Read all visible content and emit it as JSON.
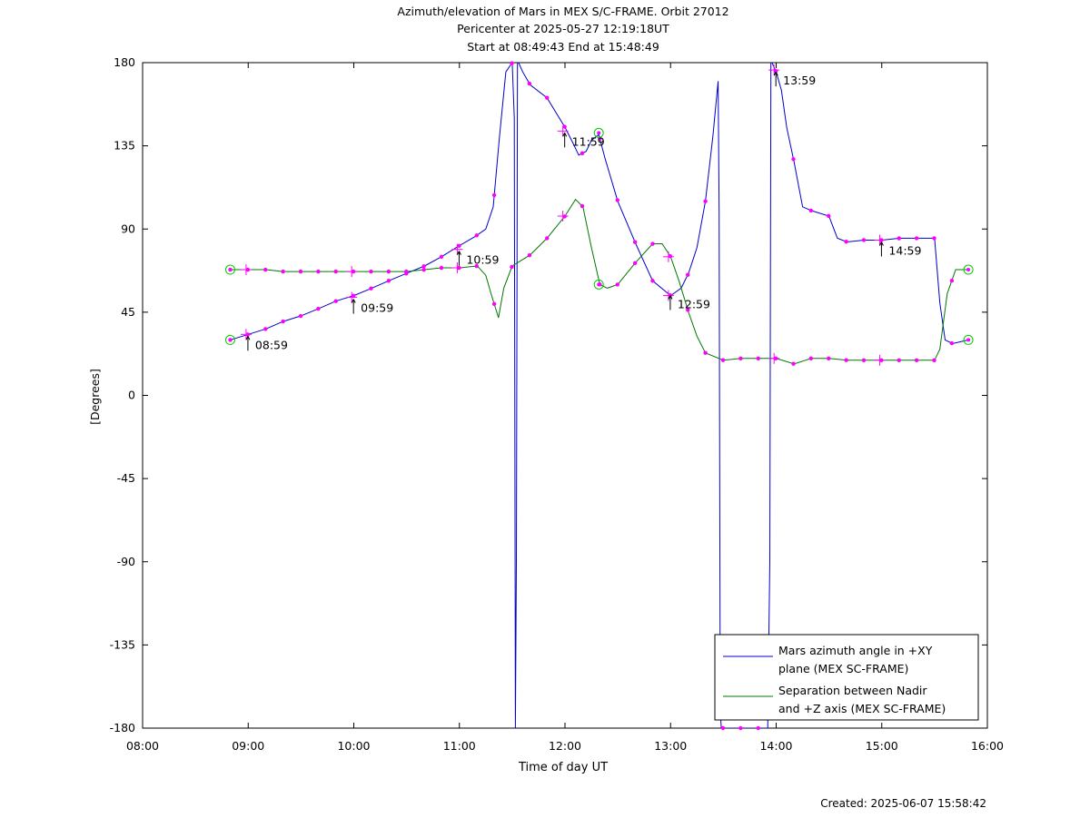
{
  "title_lines": [
    "Azimuth/elevation of Mars in MEX S/C-FRAME.  Orbit 27012",
    "Pericenter at 2025-05-27 12:19:18UT",
    "Start at 08:49:43 End at 15:48:49"
  ],
  "created": "Created: 2025-06-07 15:58:42",
  "chart_data": {
    "type": "line",
    "title": "Azimuth/elevation of Mars in MEX S/C-FRAME.  Orbit 27012",
    "xlabel": "Time of day UT",
    "ylabel": "[Degrees]",
    "xlim": [
      8.0,
      16.0
    ],
    "ylim": [
      -180,
      180
    ],
    "xticks": [
      "08:00",
      "09:00",
      "10:00",
      "11:00",
      "12:00",
      "13:00",
      "14:00",
      "15:00",
      "16:00"
    ],
    "yticks": [
      "180",
      "135",
      "90",
      "45",
      "0",
      "-45",
      "-90",
      "-135",
      "-180"
    ],
    "legend_position": "bottom-right",
    "series": [
      {
        "name": "Mars azimuth angle in +XY plane (MEX SC-FRAME)",
        "color": "#0000cc",
        "x": [
          8.83,
          9.0,
          9.17,
          9.33,
          9.5,
          9.67,
          9.83,
          10.0,
          10.17,
          10.33,
          10.5,
          10.67,
          10.83,
          11.0,
          11.15,
          11.25,
          11.32,
          11.38,
          11.44,
          11.5,
          11.52,
          11.53,
          11.54,
          11.55,
          11.56,
          11.6,
          11.67,
          11.83,
          12.0,
          12.08,
          12.13,
          12.2,
          12.25,
          12.32,
          12.38,
          12.5,
          12.67,
          12.83,
          13.0,
          13.1,
          13.17,
          13.25,
          13.33,
          13.4,
          13.45,
          13.46,
          13.47,
          13.48,
          13.5,
          13.92,
          13.94,
          13.95,
          13.96,
          14.0,
          14.05,
          14.1,
          14.17,
          14.25,
          14.33,
          14.5,
          14.58,
          14.67,
          14.83,
          15.0,
          15.17,
          15.33,
          15.5,
          15.55,
          15.6,
          15.67,
          15.82
        ],
        "y": [
          30,
          33,
          36,
          40,
          43,
          47,
          51,
          54,
          58,
          62,
          66,
          70,
          75,
          81,
          86,
          90,
          102,
          140,
          175,
          180,
          150,
          -180,
          -90,
          180,
          180,
          175,
          168,
          161,
          145,
          136,
          130,
          132,
          138,
          141,
          128,
          105,
          82,
          62,
          54,
          58,
          66,
          80,
          105,
          140,
          170,
          100,
          -170,
          -180,
          -180,
          -180,
          -90,
          180,
          180,
          175,
          165,
          145,
          126,
          102,
          100,
          97,
          85,
          83,
          84,
          84,
          85,
          85,
          85,
          50,
          30,
          28,
          30
        ]
      },
      {
        "name": "Separation between Nadir and +Z axis (MEX SC-FRAME)",
        "color": "#007700",
        "x": [
          8.83,
          9.0,
          9.17,
          9.33,
          9.5,
          9.67,
          9.83,
          10.0,
          10.17,
          10.33,
          10.5,
          10.67,
          10.83,
          11.0,
          11.17,
          11.25,
          11.3,
          11.37,
          11.42,
          11.5,
          11.67,
          11.83,
          12.0,
          12.1,
          12.17,
          12.25,
          12.33,
          12.4,
          12.5,
          12.67,
          12.83,
          12.92,
          13.0,
          13.08,
          13.17,
          13.25,
          13.33,
          13.5,
          13.67,
          13.83,
          14.0,
          14.17,
          14.33,
          14.5,
          14.67,
          14.83,
          15.0,
          15.17,
          15.33,
          15.5,
          15.55,
          15.62,
          15.7,
          15.82
        ],
        "y": [
          68,
          68,
          68,
          67,
          67,
          67,
          67,
          67,
          67,
          67,
          67,
          68,
          69,
          69,
          70,
          65,
          55,
          42,
          58,
          70,
          76,
          85,
          97,
          106,
          102,
          80,
          60,
          58,
          60,
          72,
          82,
          82,
          75,
          62,
          45,
          32,
          23,
          19,
          20,
          20,
          20,
          17,
          20,
          20,
          19,
          19,
          19,
          19,
          19,
          19,
          25,
          55,
          68,
          68
        ]
      }
    ],
    "time_labels": [
      {
        "text": "08:59",
        "x": 8.98,
        "y": 33
      },
      {
        "text": "09:59",
        "x": 9.98,
        "y": 53
      },
      {
        "text": "10:59",
        "x": 10.98,
        "y": 79
      },
      {
        "text": "11:59",
        "x": 11.98,
        "y": 143
      },
      {
        "text": "12:59",
        "x": 12.98,
        "y": 55
      },
      {
        "text": "13:59",
        "x": 13.98,
        "y": 176
      },
      {
        "text": "14:59",
        "x": 14.98,
        "y": 84
      }
    ],
    "hour_crosses": [
      {
        "x": 8.98,
        "y": 33
      },
      {
        "x": 8.98,
        "y": 68
      },
      {
        "x": 9.98,
        "y": 53
      },
      {
        "x": 9.98,
        "y": 67
      },
      {
        "x": 10.98,
        "y": 79
      },
      {
        "x": 10.98,
        "y": 69
      },
      {
        "x": 11.98,
        "y": 143
      },
      {
        "x": 11.98,
        "y": 97
      },
      {
        "x": 12.98,
        "y": 54
      },
      {
        "x": 12.98,
        "y": 75
      },
      {
        "x": 13.98,
        "y": 176
      },
      {
        "x": 13.98,
        "y": 20
      },
      {
        "x": 14.98,
        "y": 84
      },
      {
        "x": 14.98,
        "y": 19
      }
    ],
    "event_circles": [
      {
        "x": 8.83,
        "y": 30
      },
      {
        "x": 8.83,
        "y": 68
      },
      {
        "x": 12.32,
        "y": 60
      },
      {
        "x": 12.32,
        "y": 142
      },
      {
        "x": 15.82,
        "y": 30
      },
      {
        "x": 15.82,
        "y": 68
      }
    ]
  }
}
